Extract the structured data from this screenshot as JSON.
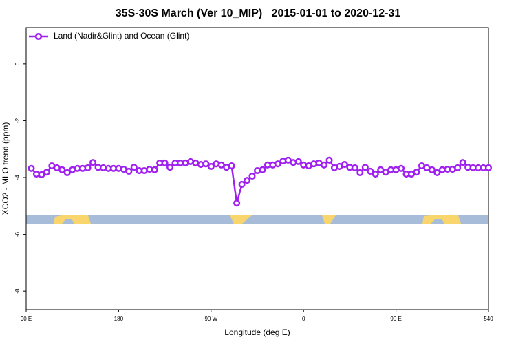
{
  "chart_data": {
    "type": "line",
    "title": "35S-30S March (Ver 10_MIP)   2015-01-01 to 2020-12-31",
    "x_label": "Longitude (deg E)",
    "y_label": "XCO2 - MLO trend (ppm)",
    "xlim": [
      90,
      540
    ],
    "ylim": [
      -8.65,
      1.28
    ],
    "xticks": [
      {
        "value": 90,
        "label": "90 E"
      },
      180,
      {
        "value": 270,
        "label": "90 W"
      },
      {
        "value": 360,
        "label": "0"
      },
      {
        "value": 450,
        "label": "90 E"
      },
      540
    ],
    "yticks": [
      0,
      -2,
      -4,
      -6,
      -8
    ],
    "legend_position": "top-left",
    "x": [
      95,
      100,
      105,
      110,
      115,
      120,
      125,
      130,
      135,
      140,
      145,
      150,
      155,
      160,
      165,
      170,
      175,
      180,
      185,
      190,
      195,
      200,
      205,
      210,
      215,
      220,
      225,
      230,
      235,
      240,
      245,
      250,
      255,
      260,
      265,
      270,
      275,
      280,
      285,
      290,
      295,
      300,
      305,
      310,
      315,
      320,
      325,
      330,
      335,
      340,
      345,
      350,
      355,
      360,
      365,
      370,
      375,
      380,
      385,
      390,
      395,
      400,
      405,
      410,
      415,
      420,
      425,
      430,
      435,
      440,
      445,
      450,
      455,
      460,
      465,
      470,
      475,
      480,
      485,
      490,
      495,
      500,
      505,
      510,
      515,
      520,
      525,
      530,
      535,
      540
    ],
    "series": [
      {
        "name": "Land (Nadir&Glint) and Ocean (Glint)",
        "color": "#a020f0",
        "values": [
          -3.68,
          -3.88,
          -3.9,
          -3.81,
          -3.59,
          -3.66,
          -3.73,
          -3.83,
          -3.73,
          -3.68,
          -3.68,
          -3.66,
          -3.47,
          -3.64,
          -3.66,
          -3.68,
          -3.68,
          -3.68,
          -3.71,
          -3.78,
          -3.64,
          -3.76,
          -3.76,
          -3.71,
          -3.73,
          -3.49,
          -3.49,
          -3.64,
          -3.49,
          -3.49,
          -3.49,
          -3.44,
          -3.49,
          -3.54,
          -3.52,
          -3.61,
          -3.52,
          -3.56,
          -3.64,
          -3.59,
          -4.9,
          -4.24,
          -4.1,
          -3.95,
          -3.76,
          -3.73,
          -3.56,
          -3.56,
          -3.52,
          -3.42,
          -3.39,
          -3.47,
          -3.44,
          -3.56,
          -3.59,
          -3.52,
          -3.49,
          -3.56,
          -3.39,
          -3.66,
          -3.61,
          -3.54,
          -3.64,
          -3.66,
          -3.83,
          -3.64,
          -3.78,
          -3.88,
          -3.73,
          -3.81,
          -3.73,
          -3.73,
          -3.68,
          -3.88,
          -3.88,
          -3.81,
          -3.59,
          -3.66,
          -3.73,
          -3.83,
          -3.73,
          -3.71,
          -3.71,
          -3.66,
          -3.47,
          -3.64,
          -3.66,
          -3.66,
          -3.66,
          -3.66
        ]
      }
    ]
  }
}
